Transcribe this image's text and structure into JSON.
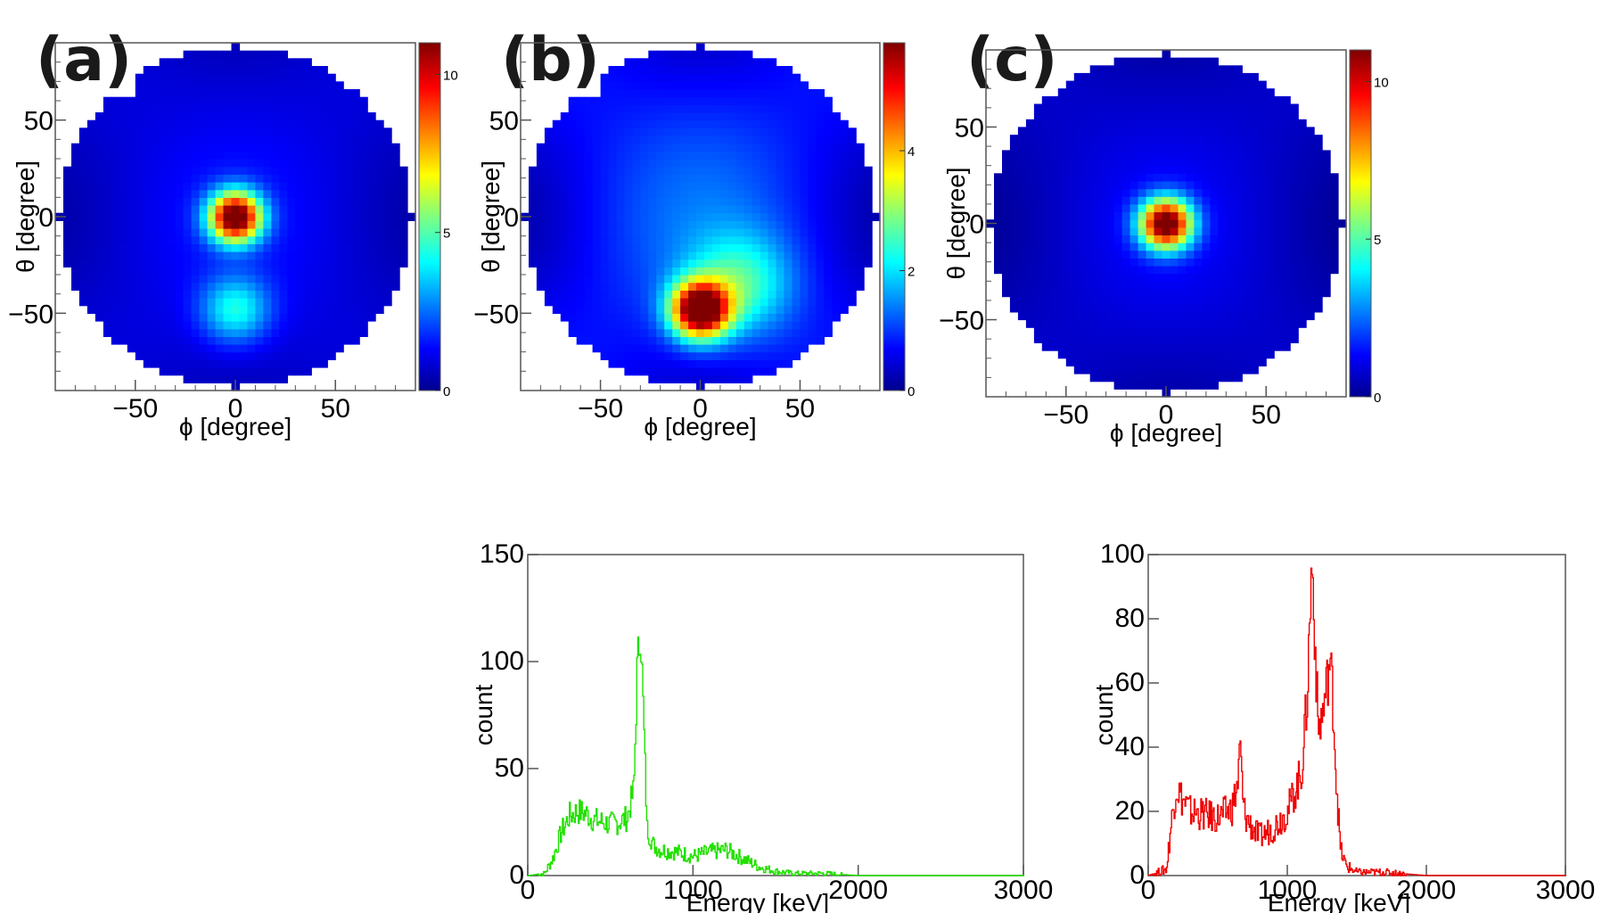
{
  "panels": [
    {
      "id": "a",
      "letter": "(a)",
      "xlabel": "ϕ [degree]",
      "ylabel": "θ [degree]",
      "xticks": [
        -50,
        0,
        50
      ],
      "yticks": [
        50,
        0,
        -50
      ],
      "zticks": [
        10,
        5,
        0
      ],
      "zmax": 11
    },
    {
      "id": "b",
      "letter": "(b)",
      "xlabel": "ϕ [degree]",
      "ylabel": "θ [degree]",
      "xticks": [
        -50,
        0,
        50
      ],
      "yticks": [
        50,
        0,
        -50
      ],
      "zticks": [
        4,
        2,
        0
      ],
      "zmax": 5.8
    },
    {
      "id": "c",
      "letter": "(c)",
      "xlabel": "ϕ [degree]",
      "ylabel": "θ [degree]",
      "xticks": [
        -50,
        0,
        50
      ],
      "yticks": [
        50,
        0,
        -50
      ],
      "zticks": [
        10,
        5,
        0
      ],
      "zmax": 11
    }
  ],
  "chart_data": [
    {
      "type": "heatmap",
      "panel": "(a)",
      "xlabel": "ϕ [degree]",
      "ylabel": "θ [degree]",
      "xlim": [
        -90,
        90
      ],
      "ylim": [
        -90,
        90
      ],
      "zlim": [
        0,
        11
      ],
      "region": "circular field of view, radius ~90 degree",
      "hotspots": [
        {
          "phi": 0,
          "theta": 0,
          "peak": 11,
          "spread": 9
        },
        {
          "phi": 0,
          "theta": -48,
          "peak": 3.2,
          "spread": 12
        }
      ],
      "background": 1.5
    },
    {
      "type": "heatmap",
      "panel": "(b)",
      "xlabel": "ϕ [degree]",
      "ylabel": "θ [degree]",
      "xlim": [
        -90,
        90
      ],
      "ylim": [
        -90,
        90
      ],
      "zlim": [
        0,
        5.8
      ],
      "region": "circular field of view, radius ~90 degree",
      "hotspots": [
        {
          "phi": 0,
          "theta": -48,
          "peak": 5.8,
          "spread": 10
        },
        {
          "phi": 20,
          "theta": -35,
          "peak": 1.6,
          "spread": 18
        }
      ],
      "background": 1.3
    },
    {
      "type": "heatmap",
      "panel": "(c)",
      "xlabel": "ϕ [degree]",
      "ylabel": "θ [degree]",
      "xlim": [
        -90,
        90
      ],
      "ylim": [
        -90,
        90
      ],
      "zlim": [
        0,
        11
      ],
      "region": "circular field of view, radius ~90 degree",
      "hotspots": [
        {
          "phi": 0,
          "theta": 0,
          "peak": 11,
          "spread": 9
        }
      ],
      "background": 1.3
    },
    {
      "type": "line",
      "panel": "(b) spectrum",
      "color": "#22e000",
      "title": "",
      "xlabel": "Energy [keV]",
      "ylabel": "count",
      "xlim": [
        0,
        3000
      ],
      "ylim": [
        0,
        150
      ],
      "xticks": [
        0,
        1000,
        2000,
        3000
      ],
      "yticks": [
        0,
        50,
        100,
        150
      ],
      "x": [
        0,
        100,
        150,
        200,
        250,
        300,
        350,
        400,
        450,
        500,
        550,
        600,
        640,
        660,
        680,
        700,
        720,
        760,
        800,
        900,
        1000,
        1100,
        1200,
        1300,
        1400,
        1500,
        1600,
        1800,
        2000,
        2500,
        3000
      ],
      "y": [
        0,
        1,
        8,
        20,
        28,
        30,
        29,
        26,
        25,
        24,
        25,
        27,
        40,
        95,
        118,
        70,
        22,
        14,
        12,
        11,
        9,
        11,
        12,
        8,
        4,
        2,
        1,
        1,
        0,
        0,
        0
      ]
    },
    {
      "type": "line",
      "panel": "(c) spectrum",
      "color": "#ee0000",
      "title": "",
      "xlabel": "Energy [keV]",
      "ylabel": "count",
      "xlim": [
        0,
        3000
      ],
      "ylim": [
        0,
        100
      ],
      "xticks": [
        0,
        1000,
        2000,
        3000
      ],
      "yticks": [
        0,
        20,
        40,
        60,
        80,
        100
      ],
      "x": [
        0,
        130,
        160,
        200,
        240,
        300,
        400,
        500,
        600,
        640,
        660,
        680,
        700,
        760,
        800,
        900,
        1000,
        1050,
        1100,
        1140,
        1160,
        1175,
        1190,
        1220,
        1260,
        1300,
        1320,
        1350,
        1380,
        1420,
        1500,
        1700,
        2000,
        2500,
        3000
      ],
      "y": [
        0,
        2,
        15,
        28,
        24,
        20,
        19,
        18,
        21,
        28,
        40,
        22,
        18,
        14,
        12,
        15,
        20,
        26,
        32,
        55,
        80,
        98,
        82,
        45,
        52,
        66,
        60,
        30,
        8,
        3,
        1,
        1,
        0,
        0,
        0
      ]
    }
  ]
}
